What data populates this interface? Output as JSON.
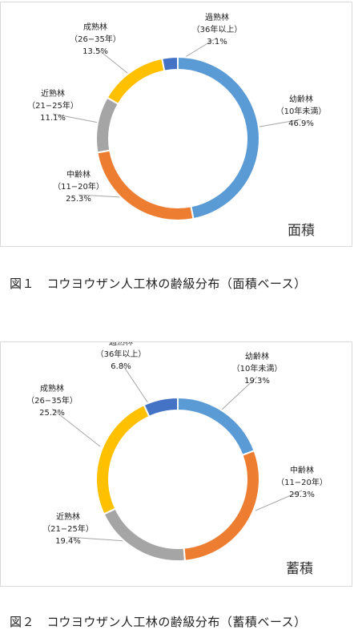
{
  "chart_data": [
    {
      "type": "pie",
      "subtitle": "面積",
      "caption": "図１　コウヨウザン人工林の齢級分布（面積ベース）",
      "slices": [
        {
          "name": "幼齢林",
          "range": "（10年未満）",
          "value": 46.9,
          "label": "46.9%",
          "color": "#5B9BD5"
        },
        {
          "name": "中齢林",
          "range": "（11−20年）",
          "value": 25.3,
          "label": "25.3%",
          "color": "#ED7D31"
        },
        {
          "name": "近熟林",
          "range": "（21−25年）",
          "value": 11.1,
          "label": "11.1%",
          "color": "#A5A5A5"
        },
        {
          "name": "成熟林",
          "range": "（26−35年）",
          "value": 13.5,
          "label": "13.5%",
          "color": "#FFC000"
        },
        {
          "name": "過熟林",
          "range": "（36年以上）",
          "value": 3.1,
          "label": "3.1%",
          "color": "#4472C4"
        }
      ]
    },
    {
      "type": "pie",
      "subtitle": "蓄積",
      "caption": "図２　コウヨウザン人工林の齢級分布（蓄積ベース）",
      "slices": [
        {
          "name": "幼齢林",
          "range": "（10年未満）",
          "value": 19.3,
          "label": "19.3%",
          "color": "#5B9BD5"
        },
        {
          "name": "中齢林",
          "range": "（11−20年）",
          "value": 29.3,
          "label": "29.3%",
          "color": "#ED7D31"
        },
        {
          "name": "近熟林",
          "range": "（21−25年）",
          "value": 19.4,
          "label": "19.4%",
          "color": "#A5A5A5"
        },
        {
          "name": "成熟林",
          "range": "（26−35年）",
          "value": 25.2,
          "label": "25.2%",
          "color": "#FFC000"
        },
        {
          "name": "過熟林",
          "range": "（36年以上）",
          "value": 6.8,
          "label": "6.8%",
          "color": "#4472C4"
        }
      ]
    }
  ]
}
